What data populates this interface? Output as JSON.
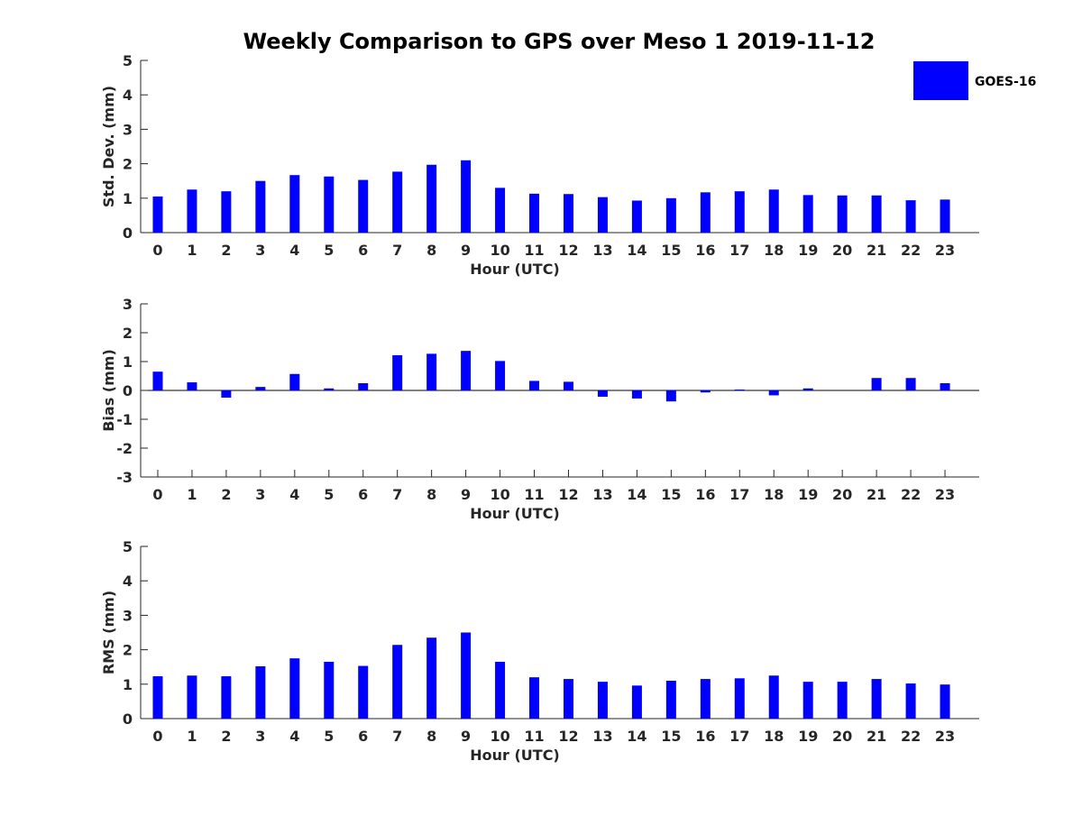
{
  "chart_data": [
    {
      "type": "bar",
      "title": "Weekly Comparison to GPS over Meso 1 2019-11-12",
      "xlabel": "Hour (UTC)",
      "ylabel": "Std. Dev. (mm)",
      "categories": [
        "0",
        "1",
        "2",
        "3",
        "4",
        "5",
        "6",
        "7",
        "8",
        "9",
        "10",
        "11",
        "12",
        "13",
        "14",
        "15",
        "16",
        "17",
        "18",
        "19",
        "20",
        "21",
        "22",
        "23"
      ],
      "ylim": [
        0,
        5
      ],
      "yticks": [
        0,
        1,
        2,
        3,
        4,
        5
      ],
      "series": [
        {
          "name": "GOES-16",
          "color": "#0000ff",
          "values": [
            1.05,
            1.25,
            1.2,
            1.5,
            1.67,
            1.63,
            1.53,
            1.77,
            1.97,
            2.1,
            1.3,
            1.13,
            1.12,
            1.03,
            0.93,
            1.0,
            1.17,
            1.2,
            1.25,
            1.09,
            1.08,
            1.08,
            0.94,
            0.96
          ]
        }
      ],
      "legend": {
        "position": "top-right",
        "entries": [
          "GOES-16"
        ]
      }
    },
    {
      "type": "bar",
      "xlabel": "Hour (UTC)",
      "ylabel": "Bias (mm)",
      "categories": [
        "0",
        "1",
        "2",
        "3",
        "4",
        "5",
        "6",
        "7",
        "8",
        "9",
        "10",
        "11",
        "12",
        "13",
        "14",
        "15",
        "16",
        "17",
        "18",
        "19",
        "20",
        "21",
        "22",
        "23"
      ],
      "ylim": [
        -3,
        3
      ],
      "yticks": [
        -3,
        -2,
        -1,
        0,
        1,
        2,
        3
      ],
      "series": [
        {
          "name": "GOES-16",
          "color": "#0000ff",
          "values": [
            0.65,
            0.28,
            -0.25,
            0.12,
            0.57,
            0.07,
            0.25,
            1.22,
            1.27,
            1.37,
            1.02,
            0.33,
            0.3,
            -0.22,
            -0.28,
            -0.38,
            -0.07,
            0.03,
            -0.17,
            0.07,
            0.0,
            0.43,
            0.43,
            0.25
          ]
        }
      ]
    },
    {
      "type": "bar",
      "xlabel": "Hour (UTC)",
      "ylabel": "RMS (mm)",
      "categories": [
        "0",
        "1",
        "2",
        "3",
        "4",
        "5",
        "6",
        "7",
        "8",
        "9",
        "10",
        "11",
        "12",
        "13",
        "14",
        "15",
        "16",
        "17",
        "18",
        "19",
        "20",
        "21",
        "22",
        "23"
      ],
      "ylim": [
        0,
        5
      ],
      "yticks": [
        0,
        1,
        2,
        3,
        4,
        5
      ],
      "series": [
        {
          "name": "GOES-16",
          "color": "#0000ff",
          "values": [
            1.23,
            1.25,
            1.23,
            1.52,
            1.75,
            1.65,
            1.53,
            2.14,
            2.35,
            2.5,
            1.65,
            1.2,
            1.15,
            1.07,
            0.96,
            1.1,
            1.15,
            1.17,
            1.25,
            1.07,
            1.07,
            1.15,
            1.02,
            0.99
          ]
        }
      ]
    }
  ]
}
